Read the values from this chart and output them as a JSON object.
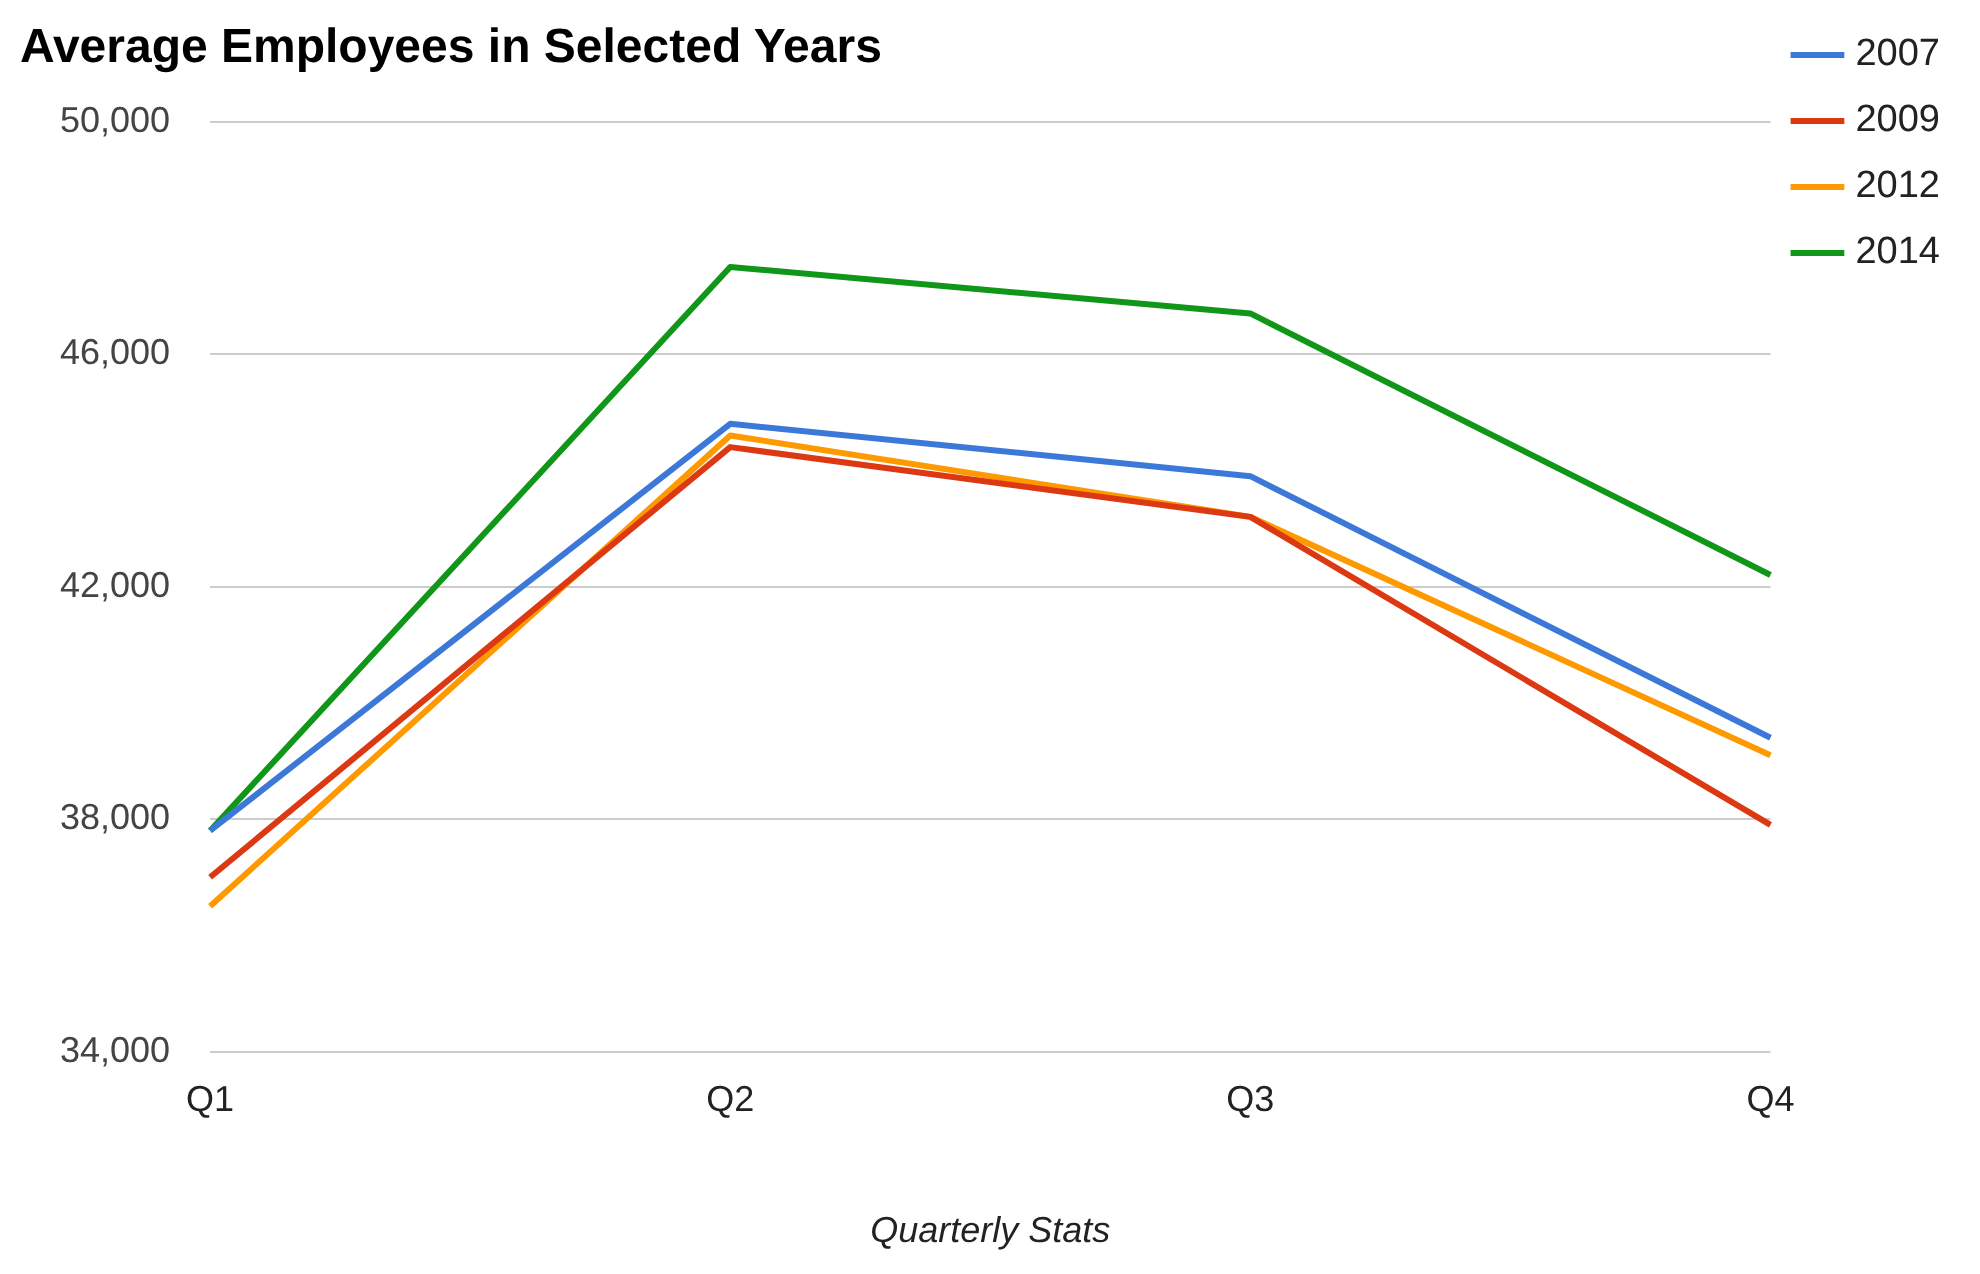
{
  "chart_data": {
    "type": "line",
    "title": "Average Employees in Selected Years",
    "xlabel": "Quarterly Stats",
    "categories": [
      "Q1",
      "Q2",
      "Q3",
      "Q4"
    ],
    "series": [
      {
        "name": "2007",
        "color": "#3c78d8",
        "values": [
          37800,
          44800,
          43900,
          39400
        ]
      },
      {
        "name": "2009",
        "color": "#dc3912",
        "values": [
          37000,
          44400,
          43200,
          37900
        ]
      },
      {
        "name": "2012",
        "color": "#ff9900",
        "values": [
          36500,
          44600,
          43200,
          39100
        ]
      },
      {
        "name": "2014",
        "color": "#109618",
        "values": [
          37800,
          47500,
          46700,
          42200
        ]
      }
    ],
    "ylim": [
      34000,
      50000
    ],
    "yticks": [
      {
        "value": 34000,
        "label": "34,000"
      },
      {
        "value": 38000,
        "label": "38,000"
      },
      {
        "value": 42000,
        "label": "42,000"
      },
      {
        "value": 46000,
        "label": "46,000"
      },
      {
        "value": 50000,
        "label": "50,000"
      }
    ],
    "grid": "y",
    "legend": "right",
    "marker": "none",
    "line_style": "solid"
  }
}
